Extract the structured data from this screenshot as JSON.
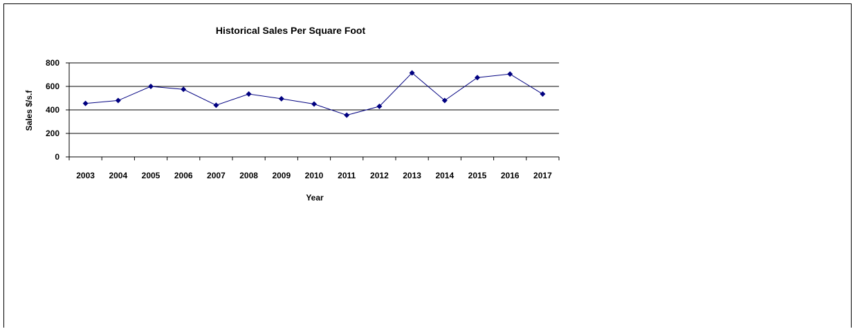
{
  "chart_data": {
    "type": "line",
    "title": "Historical Sales Per Square Foot",
    "xlabel": "Year",
    "ylabel": "Sales $/s.f",
    "categories": [
      "2003",
      "2004",
      "2005",
      "2006",
      "2007",
      "2008",
      "2009",
      "2010",
      "2011",
      "2012",
      "2013",
      "2014",
      "2015",
      "2016",
      "2017"
    ],
    "series": [
      {
        "values": [
          455,
          480,
          600,
          575,
          440,
          535,
          495,
          450,
          355,
          430,
          715,
          480,
          675,
          705,
          535
        ]
      }
    ],
    "ylim": [
      0,
      800
    ],
    "yticks": [
      0,
      200,
      400,
      600,
      800
    ],
    "grid": true,
    "legend": "none",
    "colors": {
      "line": "#000080",
      "marker": "#000080",
      "grid": "#000000"
    }
  }
}
